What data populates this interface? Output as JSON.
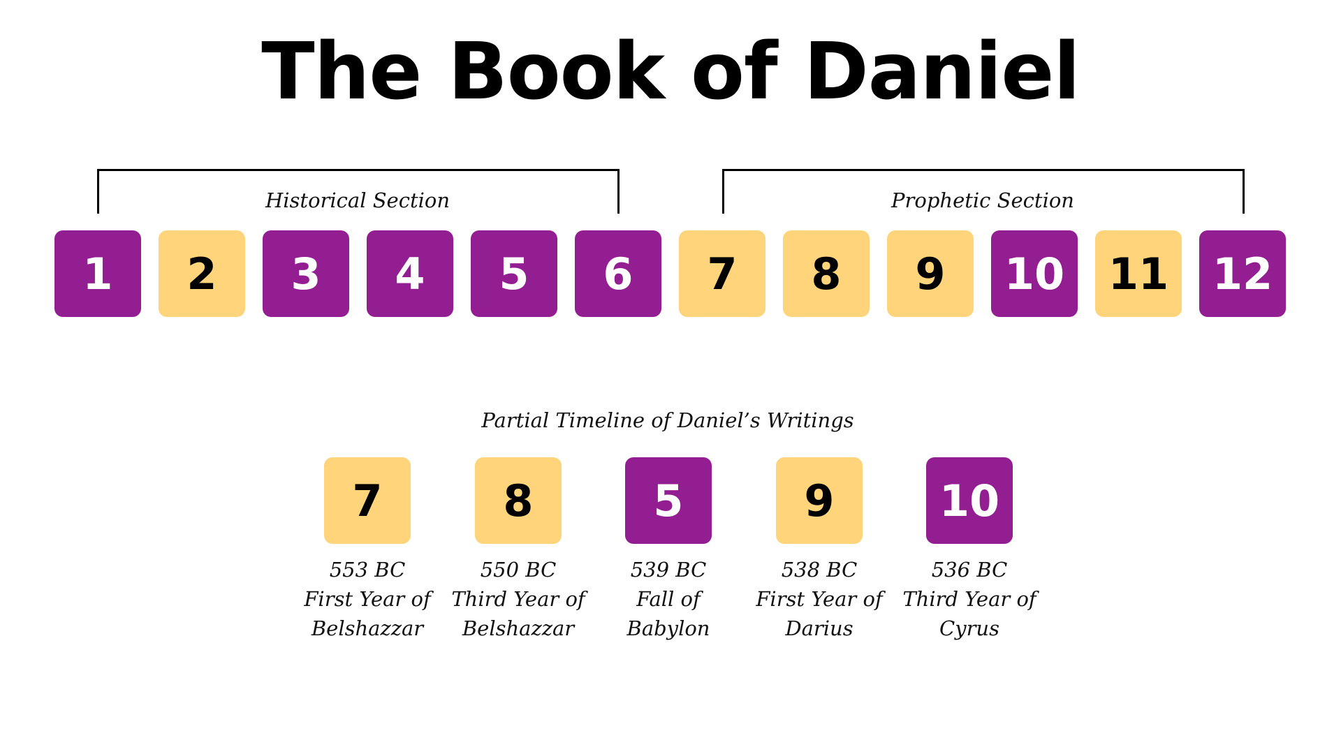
{
  "title": "The Book of Daniel",
  "colors": {
    "purple": "#931E91",
    "yellow": "#FFD47A"
  },
  "sections": [
    {
      "label": "Historical Section",
      "chapters": "1-6"
    },
    {
      "label": "Prophetic Section",
      "chapters": "7-12"
    }
  ],
  "chapters": [
    {
      "number": "1",
      "color": "purple"
    },
    {
      "number": "2",
      "color": "yellow"
    },
    {
      "number": "3",
      "color": "purple"
    },
    {
      "number": "4",
      "color": "purple"
    },
    {
      "number": "5",
      "color": "purple"
    },
    {
      "number": "6",
      "color": "purple"
    },
    {
      "number": "7",
      "color": "yellow"
    },
    {
      "number": "8",
      "color": "yellow"
    },
    {
      "number": "9",
      "color": "yellow"
    },
    {
      "number": "10",
      "color": "purple"
    },
    {
      "number": "11",
      "color": "yellow"
    },
    {
      "number": "12",
      "color": "purple"
    }
  ],
  "timeline": {
    "title": "Partial Timeline of Daniel’s Writings",
    "items": [
      {
        "chapter": "7",
        "color": "yellow",
        "date": "553 BC",
        "line1": "First Year of",
        "line2": "Belshazzar"
      },
      {
        "chapter": "8",
        "color": "yellow",
        "date": "550 BC",
        "line1": "Third Year of",
        "line2": "Belshazzar"
      },
      {
        "chapter": "5",
        "color": "purple",
        "date": "539 BC",
        "line1": "Fall of Babylon",
        "line2": ""
      },
      {
        "chapter": "9",
        "color": "yellow",
        "date": "538 BC",
        "line1": "First Year of",
        "line2": "Darius"
      },
      {
        "chapter": "10",
        "color": "purple",
        "date": "536 BC",
        "line1": "Third Year of",
        "line2": "Cyrus"
      }
    ]
  }
}
